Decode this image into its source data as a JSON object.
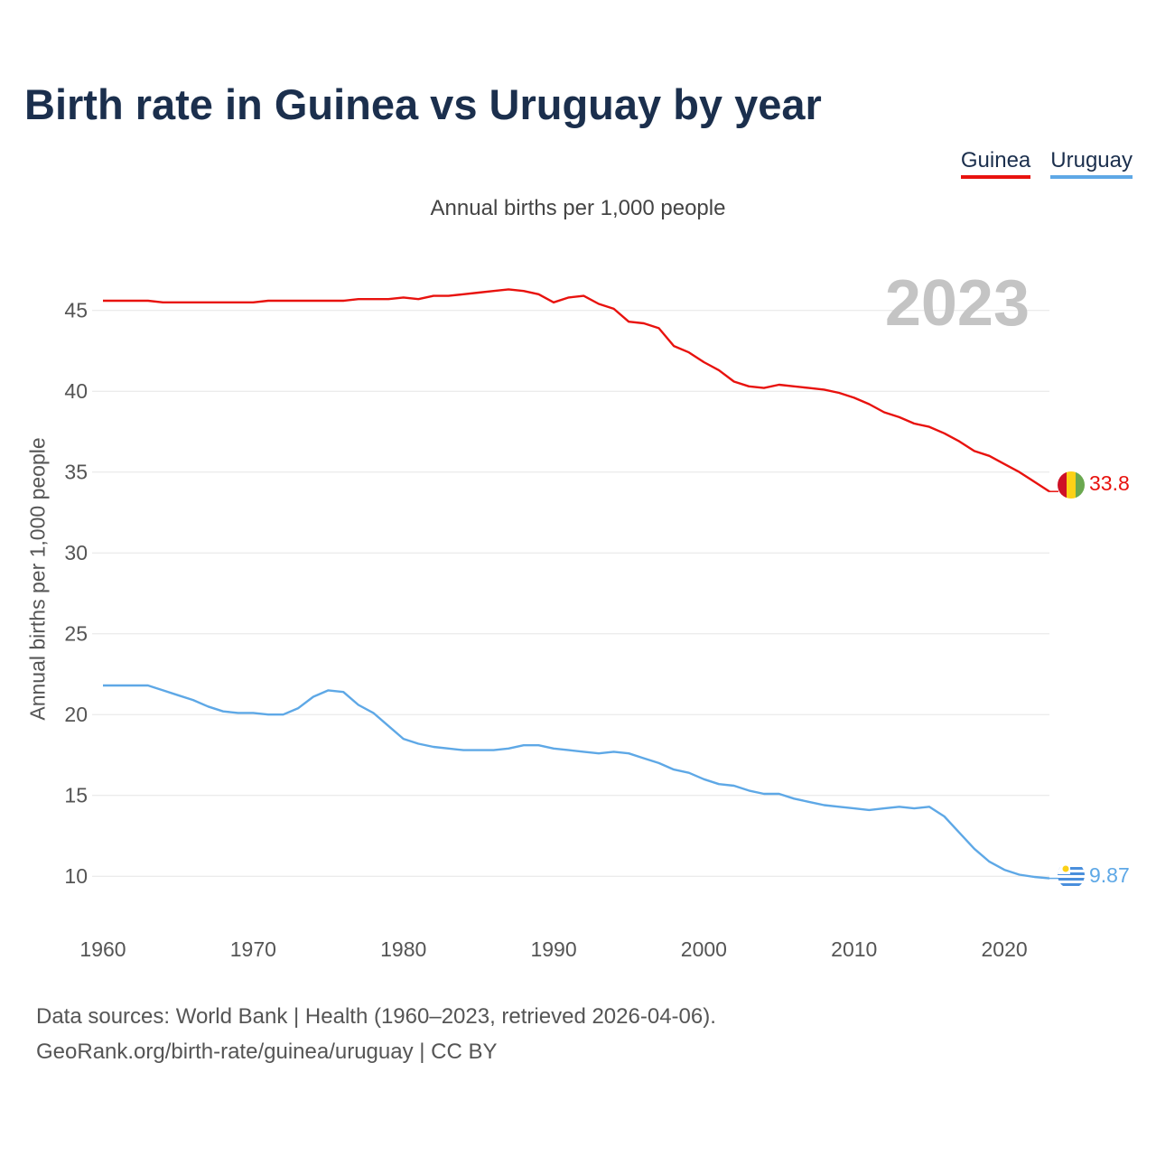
{
  "chart_data": {
    "type": "line",
    "title": "Birth rate in Guinea vs Uruguay by year",
    "subtitle": "Annual births per 1,000 people",
    "ylabel": "Annual births per 1,000 people",
    "xlabel": "",
    "year_label": "2023",
    "xlim": [
      1960,
      2023
    ],
    "ylim": [
      7.5,
      48
    ],
    "x_ticks": [
      1960,
      1970,
      1980,
      1990,
      2000,
      2010,
      2020
    ],
    "y_ticks": [
      10,
      15,
      20,
      25,
      30,
      35,
      40,
      45
    ],
    "x": [
      1960,
      1961,
      1962,
      1963,
      1964,
      1965,
      1966,
      1967,
      1968,
      1969,
      1970,
      1971,
      1972,
      1973,
      1974,
      1975,
      1976,
      1977,
      1978,
      1979,
      1980,
      1981,
      1982,
      1983,
      1984,
      1985,
      1986,
      1987,
      1988,
      1989,
      1990,
      1991,
      1992,
      1993,
      1994,
      1995,
      1996,
      1997,
      1998,
      1999,
      2000,
      2001,
      2002,
      2003,
      2004,
      2005,
      2006,
      2007,
      2008,
      2009,
      2010,
      2011,
      2012,
      2013,
      2014,
      2015,
      2016,
      2017,
      2018,
      2019,
      2020,
      2021,
      2022,
      2023
    ],
    "series": [
      {
        "name": "Guinea",
        "color": "#e8120e",
        "end_label": "33.8",
        "values": [
          45.6,
          45.6,
          45.6,
          45.6,
          45.5,
          45.5,
          45.5,
          45.5,
          45.5,
          45.5,
          45.5,
          45.6,
          45.6,
          45.6,
          45.6,
          45.6,
          45.6,
          45.7,
          45.7,
          45.7,
          45.8,
          45.7,
          45.9,
          45.9,
          46.0,
          46.1,
          46.2,
          46.3,
          46.2,
          46.0,
          45.5,
          45.8,
          45.9,
          45.4,
          45.1,
          44.3,
          44.2,
          43.9,
          42.8,
          42.4,
          41.8,
          41.3,
          40.6,
          40.3,
          40.2,
          40.4,
          40.3,
          40.2,
          40.1,
          39.9,
          39.6,
          39.2,
          38.7,
          38.4,
          38.0,
          37.8,
          37.4,
          36.9,
          36.3,
          36.0,
          35.5,
          35.0,
          34.4,
          33.8
        ]
      },
      {
        "name": "Uruguay",
        "color": "#5ea8e6",
        "end_label": "9.87",
        "values": [
          21.8,
          21.8,
          21.8,
          21.8,
          21.5,
          21.2,
          20.9,
          20.5,
          20.2,
          20.1,
          20.1,
          20.0,
          20.0,
          20.4,
          21.1,
          21.5,
          21.4,
          20.6,
          20.1,
          19.3,
          18.5,
          18.2,
          18.0,
          17.9,
          17.8,
          17.8,
          17.8,
          17.9,
          18.1,
          18.1,
          17.9,
          17.8,
          17.7,
          17.6,
          17.7,
          17.6,
          17.3,
          17.0,
          16.6,
          16.4,
          16.0,
          15.7,
          15.6,
          15.3,
          15.1,
          15.1,
          14.8,
          14.6,
          14.4,
          14.3,
          14.2,
          14.1,
          14.2,
          14.3,
          14.2,
          14.3,
          13.7,
          12.7,
          11.7,
          10.9,
          10.4,
          10.1,
          9.96,
          9.87
        ]
      }
    ]
  },
  "footer": {
    "line1": "Data sources: World Bank | Health (1960–2023, retrieved 2026-04-06).",
    "line2": "GeoRank.org/birth-rate/guinea/uruguay | CC BY"
  }
}
